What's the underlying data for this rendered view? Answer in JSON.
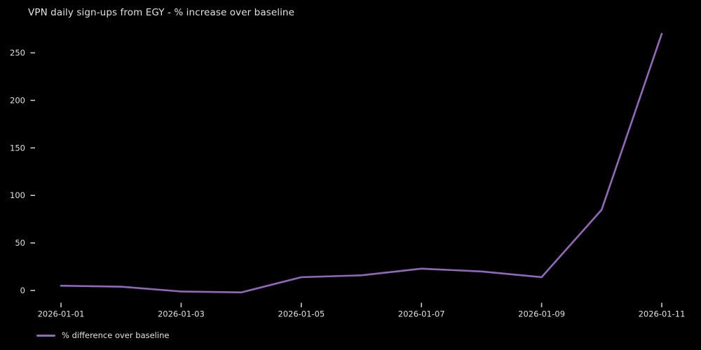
{
  "title": "VPN daily sign-ups from EGY - % increase over baseline",
  "legend": {
    "label": "% difference over baseline"
  },
  "colors": {
    "background": "#000000",
    "line": "#9467bd",
    "text": "#e0e0e0",
    "tick_mark": "#c8c8c8"
  },
  "chart_data": {
    "type": "line",
    "title": "VPN daily sign-ups from EGY - % increase over baseline",
    "x": [
      "2026-01-01",
      "2026-01-02",
      "2026-01-03",
      "2026-01-04",
      "2026-01-05",
      "2026-01-06",
      "2026-01-07",
      "2026-01-08",
      "2026-01-09",
      "2026-01-10",
      "2026-01-11"
    ],
    "values": [
      5,
      4,
      -1,
      -2,
      14,
      16,
      23,
      20,
      14,
      85,
      270
    ],
    "series_name": "% difference over baseline",
    "xlabel": "",
    "ylabel": "",
    "yticks": [
      0,
      50,
      100,
      150,
      200,
      250
    ],
    "xticks": [
      "2026-01-01",
      "2026-01-03",
      "2026-01-05",
      "2026-01-07",
      "2026-01-09",
      "2026-01-11"
    ],
    "ylim": [
      -20,
      280
    ],
    "grid": false,
    "legend_position": "bottom-left"
  }
}
